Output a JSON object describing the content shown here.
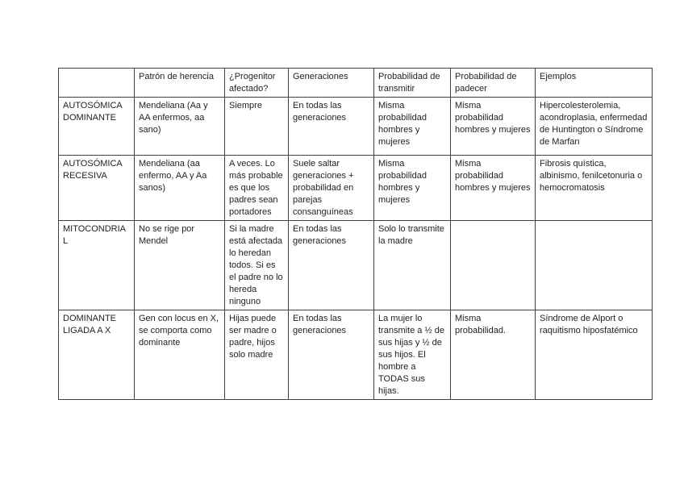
{
  "page": {
    "background": "#ffffff",
    "border_color": "#404040",
    "text_color": "#1f1f1f"
  },
  "table": {
    "headers": [
      "",
      "Patrón de herencia",
      "¿Progenitor afectado?",
      "Generaciones",
      "Probabilidad de transmitir",
      "Probabilidad de padecer",
      "Ejemplos"
    ],
    "rows": [
      {
        "label": "AUTOSÓMICA DOMINANTE",
        "cells": [
          "Mendeliana (Aa y AA enfermos, aa sano)",
          "Siempre",
          "En todas las generaciones",
          "Misma probabilidad hombres y mujeres",
          "Misma probabilidad hombres y mujeres",
          "Hipercolesterolemia, acondroplasia, enfermedad de Huntington o Síndrome de Marfan"
        ]
      },
      {
        "label": "AUTOSÓMICA RECESIVA",
        "cells": [
          "Mendeliana (aa enfermo, AA y Aa sanos)",
          "A veces. Lo más probable es que los padres sean portadores",
          "Suele saltar generaciones + probabilidad en parejas consanguíneas",
          "Misma probabilidad hombres y mujeres",
          "Misma probabilidad hombres y mujeres",
          "Fibrosis quística, albinismo, fenilcetonuria o hemocromatosis"
        ]
      },
      {
        "label": "MITOCONDRIAL",
        "cells": [
          "No se rige por Mendel",
          "Si la madre está afectada lo heredan todos. Si es el padre no lo hereda ninguno",
          "En todas las generaciones",
          "Solo lo transmite la madre",
          "",
          ""
        ]
      },
      {
        "label": "DOMINANTE LIGADA A X",
        "cells": [
          "Gen con locus en X, se comporta como dominante",
          "Hijas puede ser madre o padre, hijos solo madre",
          "En todas las generaciones",
          "La mujer lo transmite a ½ de sus hijas y ½ de sus hijos. El hombre a TODAS sus hijas.",
          "Misma probabilidad.",
          "Síndrome de Alport o raquitismo hiposfatémico"
        ]
      }
    ]
  }
}
